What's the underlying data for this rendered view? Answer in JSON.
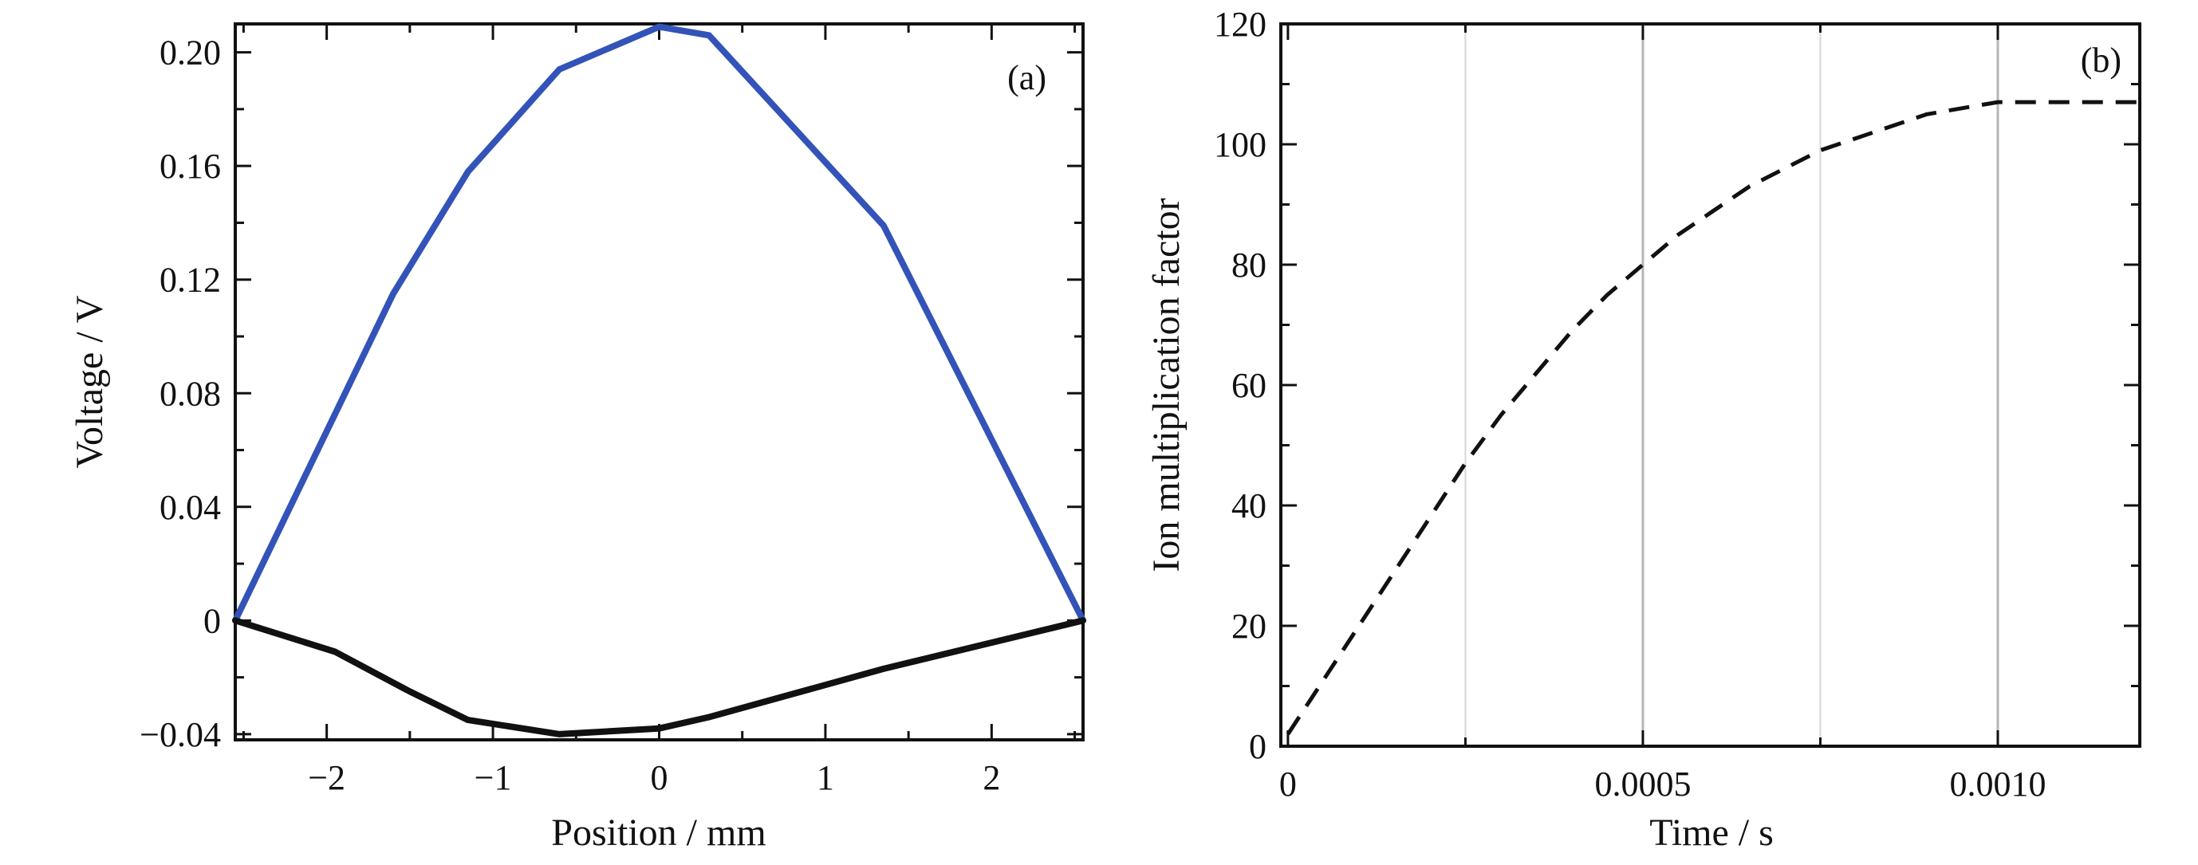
{
  "figure": {
    "panels": [
      {
        "label": "(a)",
        "chart_data": {
          "type": "line",
          "xlabel": "Position / mm",
          "ylabel": "Voltage / V",
          "xlim": [
            -2.55,
            2.55
          ],
          "ylim": [
            -0.042,
            0.21
          ],
          "xticks": [
            -2,
            -1,
            0,
            1,
            2
          ],
          "xtick_labels": [
            "−2",
            "−1",
            "0",
            "1",
            "2"
          ],
          "yticks": [
            0.2,
            0.16,
            0.12,
            0.08,
            0.04,
            0,
            -0.04
          ],
          "ytick_labels": [
            "0.20",
            "0.16",
            "0.12",
            "0.08",
            "0.04",
            "0",
            "−0.04"
          ],
          "grid": false,
          "series": [
            {
              "color": "#3353b8",
              "style": "solid",
              "x": [
                -2.55,
                -1.6,
                -1.15,
                -0.6,
                0,
                0.3,
                1.35,
                2.55
              ],
              "y": [
                0,
                0.115,
                0.158,
                0.194,
                0.209,
                0.206,
                0.139,
                0
              ]
            },
            {
              "color": "#111111",
              "style": "solid",
              "x": [
                -2.55,
                -1.95,
                -1.5,
                -1.15,
                -0.6,
                0,
                0.3,
                1.35,
                2.55
              ],
              "y": [
                0,
                -0.011,
                -0.025,
                -0.035,
                -0.04,
                -0.038,
                -0.034,
                -0.017,
                0
              ]
            }
          ]
        }
      },
      {
        "label": "(b)",
        "chart_data": {
          "type": "line",
          "xlabel": "Time / s",
          "ylabel": "Ion multiplication factor",
          "xlim": [
            -1e-05,
            0.0012
          ],
          "ylim": [
            0,
            120
          ],
          "xticks": [
            0,
            0.0005,
            0.001
          ],
          "xtick_labels": [
            "0",
            "0.0005",
            "0.0010"
          ],
          "yticks": [
            0,
            20,
            40,
            60,
            80,
            100,
            120
          ],
          "ytick_labels": [
            "0",
            "20",
            "40",
            "60",
            "80",
            "100",
            "120"
          ],
          "grid": "vertical",
          "gridlines_x": [
            0.00025,
            0.0005,
            0.00075,
            0.001
          ],
          "series": [
            {
              "color": "#111111",
              "style": "dashed",
              "x": [
                0,
                5e-05,
                0.0001,
                0.00015,
                0.0002,
                0.00025,
                0.0003,
                0.00035,
                0.0004,
                0.00045,
                0.0005,
                0.00055,
                0.0006,
                0.00065,
                0.0007,
                0.00075,
                0.0008,
                0.00085,
                0.0009,
                0.00095,
                0.001,
                0.00105,
                0.0011,
                0.0012
              ],
              "y": [
                2,
                11,
                20,
                29,
                38,
                47,
                55,
                62,
                69,
                75,
                80,
                85,
                89,
                93,
                96,
                99,
                101,
                103,
                105,
                106,
                107,
                107,
                107,
                107
              ]
            }
          ]
        }
      }
    ]
  }
}
